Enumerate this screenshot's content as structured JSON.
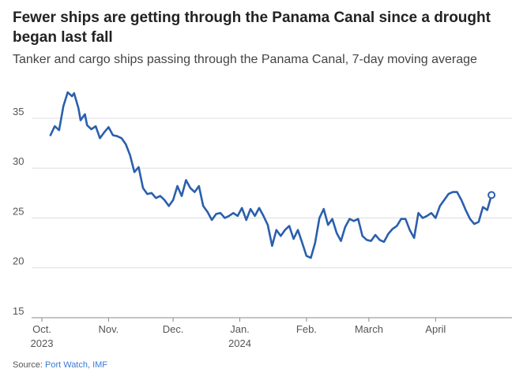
{
  "title": "Fewer ships are getting through the Panama Canal since a drought began last fall",
  "subtitle": "Tanker and cargo ships passing through the Panama Canal, 7-day moving average",
  "source_label": "Source:",
  "source_value": "Port Watch, IMF",
  "colors": {
    "line": "#2b5fad",
    "grid": "#dddddd",
    "axis": "#555555"
  },
  "chart_data": {
    "type": "line",
    "title": "Fewer ships are getting through the Panama Canal since a drought began last fall",
    "subtitle": "Tanker and cargo ships passing through the Panama Canal, 7-day moving average",
    "xlabel": "",
    "ylabel": "",
    "ylim": [
      15,
      38
    ],
    "yticks": [
      15,
      20,
      25,
      30,
      35
    ],
    "grid": true,
    "x_ticks": [
      {
        "date": "2023-10-01",
        "label": "Oct.",
        "sublabel": "2023"
      },
      {
        "date": "2023-11-01",
        "label": "Nov.",
        "sublabel": ""
      },
      {
        "date": "2023-12-01",
        "label": "Dec.",
        "sublabel": ""
      },
      {
        "date": "2024-01-01",
        "label": "Jan.",
        "sublabel": "2024"
      },
      {
        "date": "2024-02-01",
        "label": "Feb.",
        "sublabel": ""
      },
      {
        "date": "2024-03-01",
        "label": "March",
        "sublabel": ""
      },
      {
        "date": "2024-04-01",
        "label": "April",
        "sublabel": ""
      }
    ],
    "series": [
      {
        "x": [
          "2023-10-05",
          "2023-10-07",
          "2023-10-09",
          "2023-10-11",
          "2023-10-13",
          "2023-10-15",
          "2023-10-16",
          "2023-10-18",
          "2023-10-19",
          "2023-10-21",
          "2023-10-22",
          "2023-10-24",
          "2023-10-26",
          "2023-10-28",
          "2023-10-30",
          "2023-11-01",
          "2023-11-03",
          "2023-11-05",
          "2023-11-07",
          "2023-11-09",
          "2023-11-11",
          "2023-11-13",
          "2023-11-15",
          "2023-11-17",
          "2023-11-19",
          "2023-11-21",
          "2023-11-23",
          "2023-11-25",
          "2023-11-27",
          "2023-11-29",
          "2023-12-01",
          "2023-12-03",
          "2023-12-05",
          "2023-12-07",
          "2023-12-09",
          "2023-12-11",
          "2023-12-13",
          "2023-12-15",
          "2023-12-17",
          "2023-12-19",
          "2023-12-21",
          "2023-12-23",
          "2023-12-25",
          "2023-12-27",
          "2023-12-29",
          "2023-12-31",
          "2024-01-02",
          "2024-01-04",
          "2024-01-06",
          "2024-01-08",
          "2024-01-10",
          "2024-01-12",
          "2024-01-14",
          "2024-01-16",
          "2024-01-18",
          "2024-01-20",
          "2024-01-22",
          "2024-01-24",
          "2024-01-26",
          "2024-01-28",
          "2024-01-30",
          "2024-02-01",
          "2024-02-03",
          "2024-02-05",
          "2024-02-07",
          "2024-02-09",
          "2024-02-11",
          "2024-02-13",
          "2024-02-15",
          "2024-02-17",
          "2024-02-19",
          "2024-02-21",
          "2024-02-23",
          "2024-02-25",
          "2024-02-27",
          "2024-02-29",
          "2024-03-02",
          "2024-03-04",
          "2024-03-06",
          "2024-03-08",
          "2024-03-10",
          "2024-03-12",
          "2024-03-14",
          "2024-03-16",
          "2024-03-18",
          "2024-03-20",
          "2024-03-22",
          "2024-03-24",
          "2024-03-26",
          "2024-03-28",
          "2024-03-30",
          "2024-04-01",
          "2024-04-03",
          "2024-04-05",
          "2024-04-07",
          "2024-04-09",
          "2024-04-11",
          "2024-04-13",
          "2024-04-15",
          "2024-04-17",
          "2024-04-19",
          "2024-04-21",
          "2024-04-23",
          "2024-04-25",
          "2024-04-27"
        ],
        "values": [
          33.3,
          34.2,
          33.8,
          36.2,
          37.6,
          37.2,
          37.5,
          36.0,
          34.8,
          35.4,
          34.3,
          33.9,
          34.2,
          33.0,
          33.6,
          34.1,
          33.3,
          33.2,
          33.0,
          32.4,
          31.3,
          29.6,
          30.1,
          28.0,
          27.4,
          27.5,
          27.0,
          27.2,
          26.8,
          26.2,
          26.8,
          28.2,
          27.2,
          28.8,
          28.0,
          27.6,
          28.2,
          26.2,
          25.6,
          24.8,
          25.4,
          25.5,
          25.0,
          25.2,
          25.5,
          25.2,
          26.0,
          24.8,
          25.9,
          25.2,
          26.0,
          25.2,
          24.3,
          22.2,
          23.8,
          23.2,
          23.8,
          24.2,
          22.9,
          23.8,
          22.5,
          21.2,
          21.0,
          22.5,
          25.0,
          25.9,
          24.3,
          24.9,
          23.5,
          22.7,
          24.1,
          24.9,
          24.7,
          24.9,
          23.2,
          22.8,
          22.7,
          23.3,
          22.8,
          22.6,
          23.4,
          23.9,
          24.2,
          24.9,
          24.9,
          23.8,
          23.0,
          25.5,
          25.0,
          25.2,
          25.5,
          25.0,
          26.2,
          26.8,
          27.4,
          27.6,
          27.6,
          26.8,
          25.8,
          24.9,
          24.4,
          24.6,
          26.1,
          25.8,
          27.3
        ]
      }
    ]
  }
}
